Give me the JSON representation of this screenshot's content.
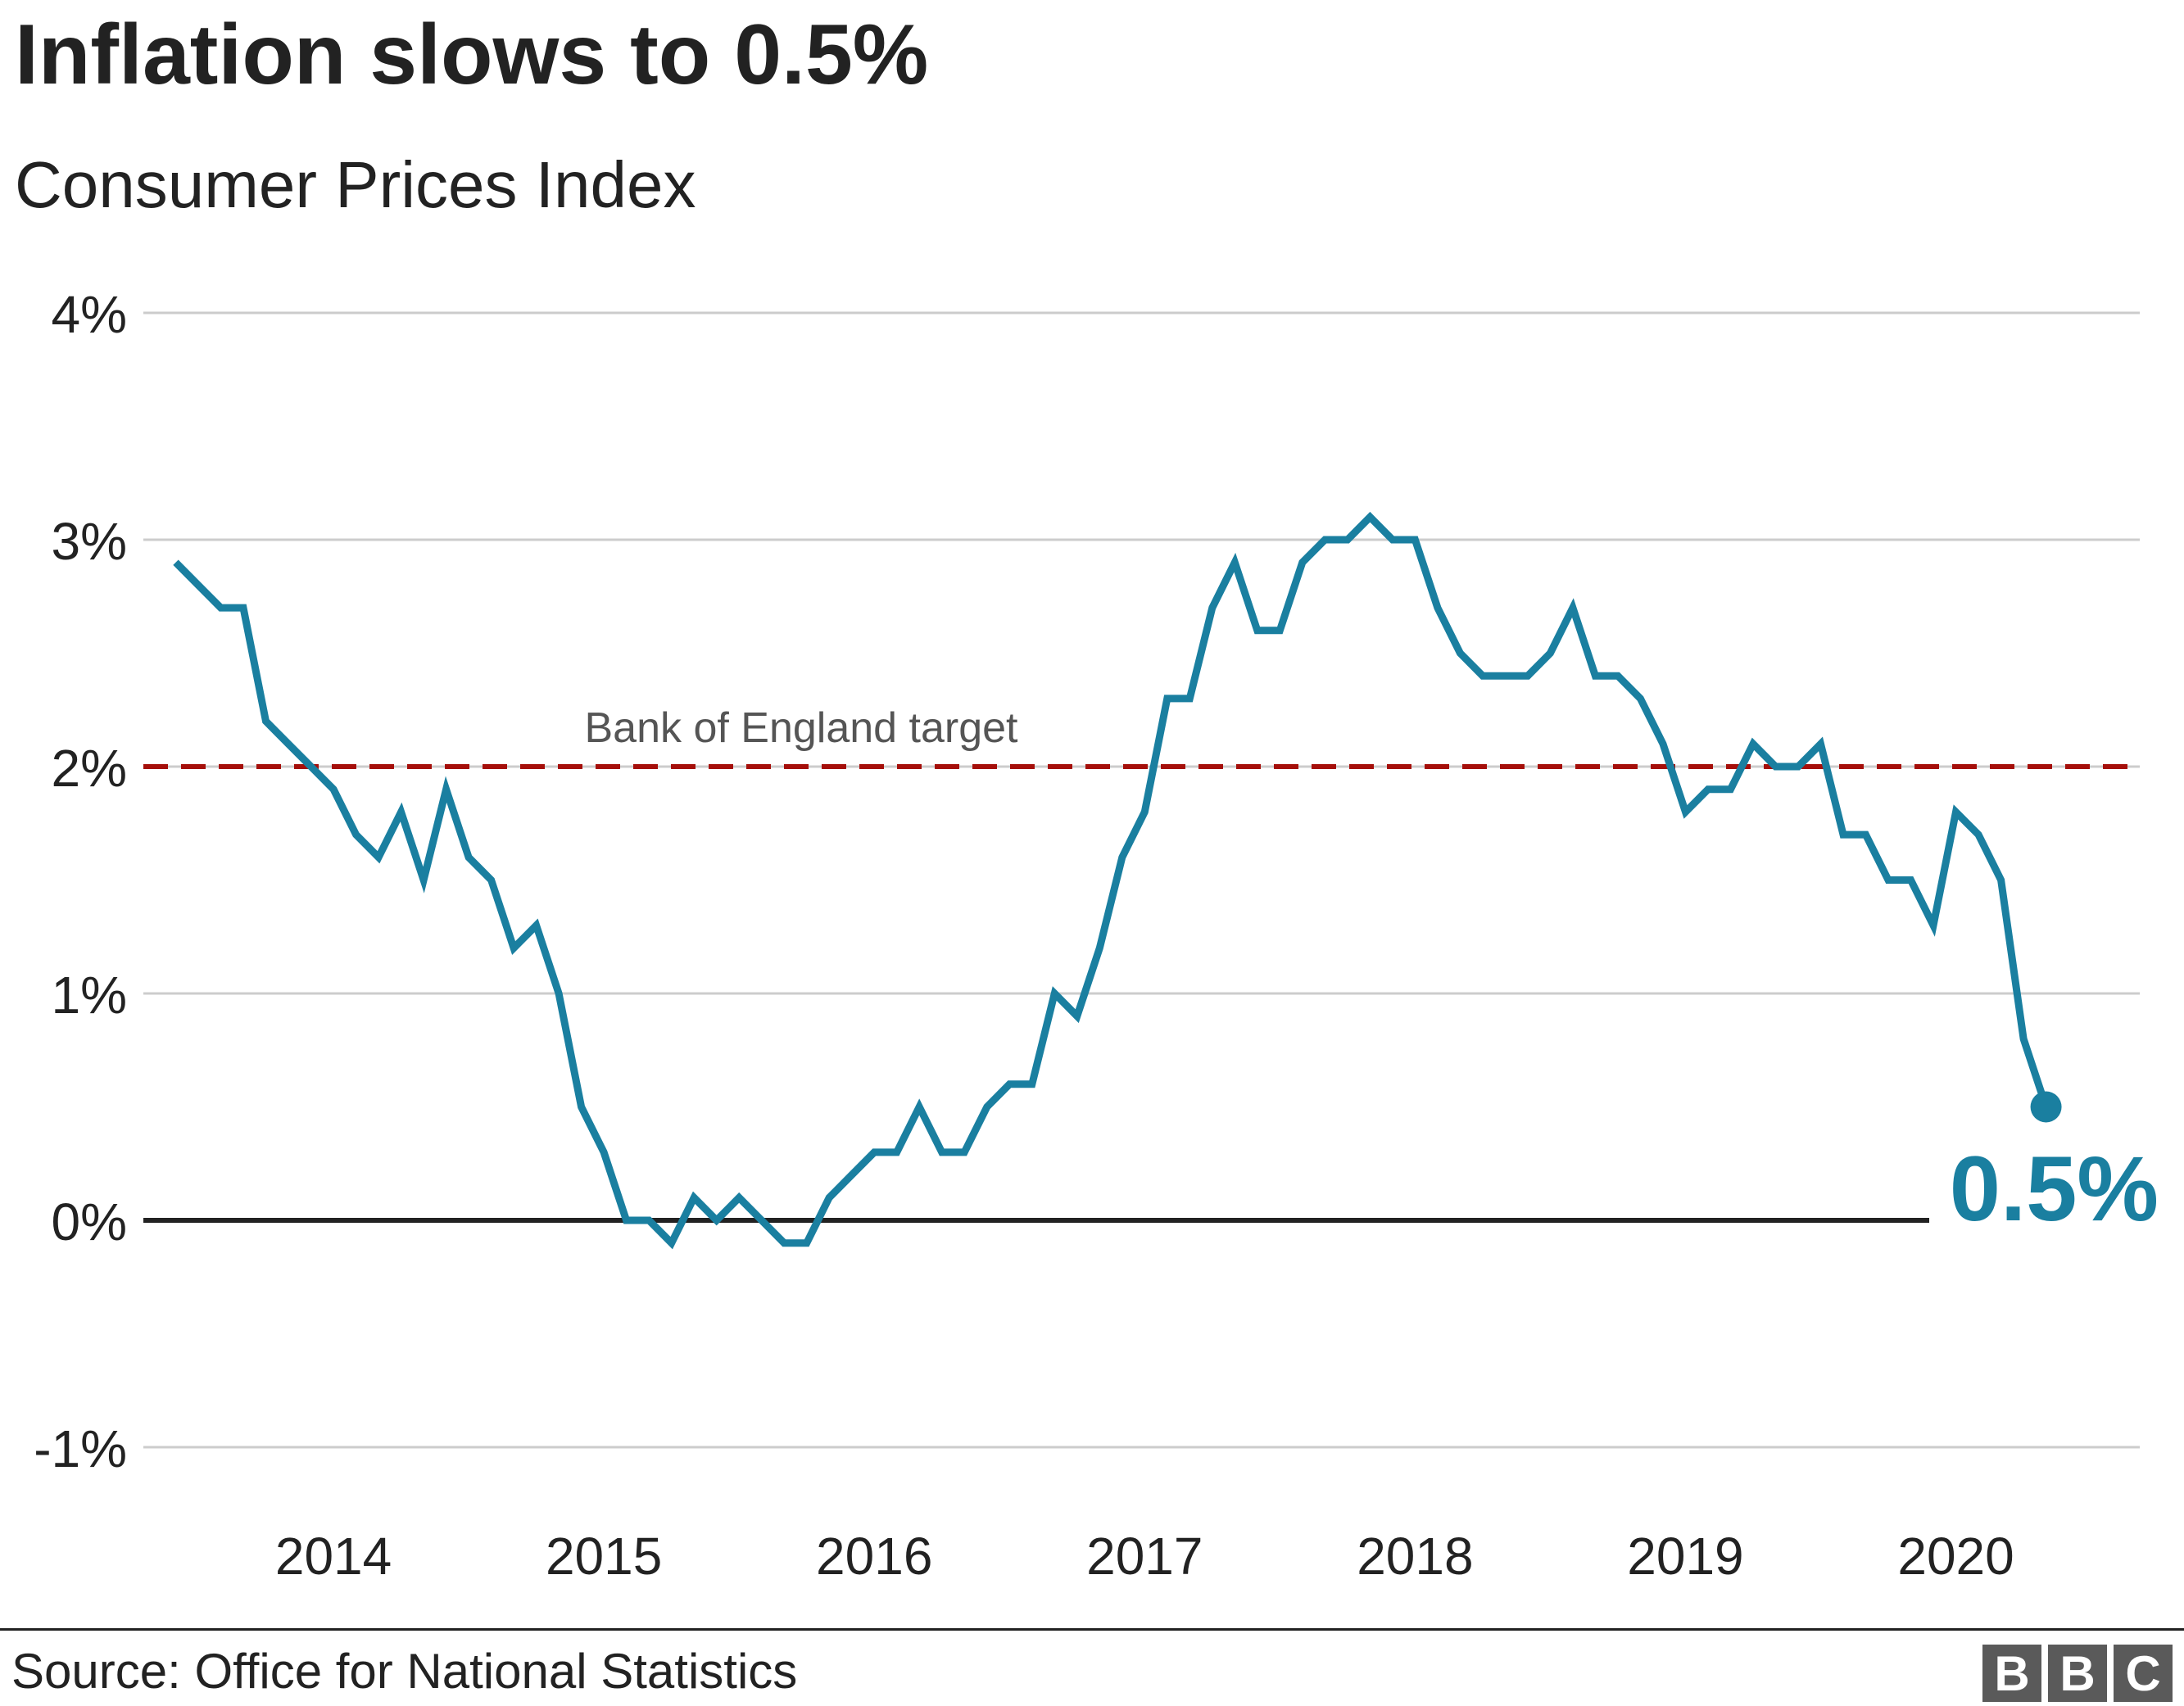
{
  "title": "Inflation slows to 0.5%",
  "subtitle": "Consumer Prices Index",
  "source": "Source: Office for National Statistics",
  "logo": [
    "B",
    "B",
    "C"
  ],
  "colors": {
    "line": "#1a7fa0",
    "target": "#a50f0a",
    "grid": "#cccccc",
    "zero": "#222222"
  },
  "chart_data": {
    "type": "line",
    "title": "Inflation slows to 0.5%",
    "subtitle": "Consumer Prices Index",
    "y_tick_labels": [
      "4%",
      "3%",
      "2%",
      "1%",
      "0%",
      "-1%"
    ],
    "y_ticks": [
      4,
      3,
      2,
      1,
      0,
      -1
    ],
    "ylim": [
      -1,
      4
    ],
    "x_tick_labels": [
      "2014",
      "2015",
      "2016",
      "2017",
      "2018",
      "2019",
      "2020"
    ],
    "x_ticks": [
      2014,
      2015,
      2016,
      2017,
      2018,
      2019,
      2020
    ],
    "xlim": [
      2013.3,
      2020.68
    ],
    "grid": true,
    "reference_line": {
      "label": "Bank of England target",
      "value": 2
    },
    "end_label": "0.5%",
    "series": [
      {
        "x_start_month": "2013-06",
        "values": [
          2.9,
          2.8,
          2.7,
          2.7,
          2.2,
          2.1,
          2.0,
          1.9,
          1.7,
          1.6,
          1.8,
          1.5,
          1.9,
          1.6,
          1.5,
          1.2,
          1.3,
          1.0,
          0.5,
          0.3,
          0.0,
          0.0,
          -0.1,
          0.1,
          0.0,
          0.1,
          0.0,
          -0.1,
          -0.1,
          0.1,
          0.2,
          0.3,
          0.3,
          0.5,
          0.3,
          0.3,
          0.5,
          0.6,
          0.6,
          1.0,
          0.9,
          1.2,
          1.6,
          1.8,
          2.3,
          2.3,
          2.7,
          2.9,
          2.6,
          2.6,
          2.9,
          3.0,
          3.0,
          3.1,
          3.0,
          3.0,
          2.7,
          2.5,
          2.4,
          2.4,
          2.4,
          2.5,
          2.7,
          2.4,
          2.4,
          2.3,
          2.1,
          1.8,
          1.9,
          1.9,
          2.1,
          2.0,
          2.0,
          2.1,
          1.7,
          1.7,
          1.5,
          1.5,
          1.3,
          1.8,
          1.7,
          1.5,
          0.8,
          0.5
        ]
      }
    ]
  }
}
